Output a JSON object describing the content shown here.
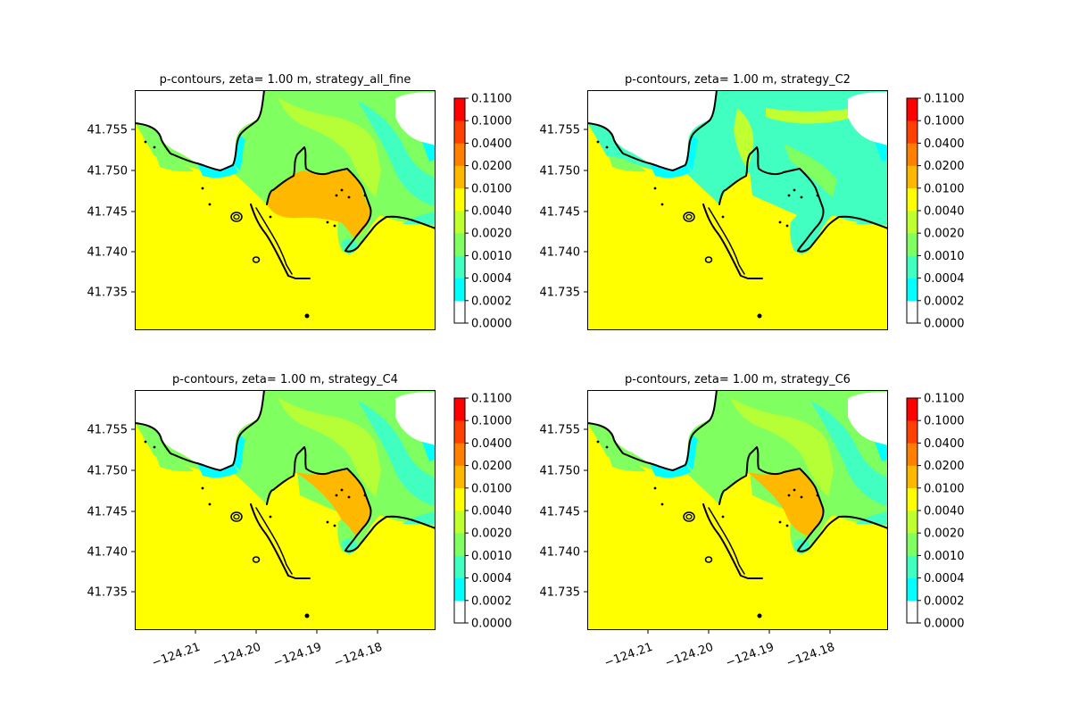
{
  "figure": {
    "background": "#ffffff"
  },
  "colorbar": {
    "levels": [
      "0.0000",
      "0.0002",
      "0.0004",
      "0.0010",
      "0.0020",
      "0.0040",
      "0.0100",
      "0.0200",
      "0.0400",
      "0.1000",
      "0.1100"
    ],
    "colors": [
      "#ffffff",
      "#00ffff",
      "#40ffc0",
      "#80ff60",
      "#c0ff30",
      "#ffff00",
      "#ffb800",
      "#ff8000",
      "#ff4000",
      "#ff0000"
    ]
  },
  "chart_data": [
    {
      "type": "heatmap",
      "title": "p-contours, zeta= 1.00 m, strategy_all_fine",
      "ytick_labels": [
        "41.755",
        "41.750",
        "41.745",
        "41.740",
        "41.735"
      ],
      "xtick_labels": [],
      "colorbar_ticks": [
        "0.1100",
        "0.1000",
        "0.0400",
        "0.0200",
        "0.0100",
        "0.0040",
        "0.0020",
        "0.0010",
        "0.0004",
        "0.0002",
        "0.0000"
      ],
      "variant": "all_fine"
    },
    {
      "type": "heatmap",
      "title": "p-contours, zeta= 1.00 m, strategy_C2",
      "ytick_labels": [
        "41.755",
        "41.750",
        "41.745",
        "41.740",
        "41.735"
      ],
      "xtick_labels": [],
      "colorbar_ticks": [
        "0.1100",
        "0.1000",
        "0.0400",
        "0.0200",
        "0.0100",
        "0.0040",
        "0.0020",
        "0.0010",
        "0.0004",
        "0.0002",
        "0.0000"
      ],
      "variant": "C2"
    },
    {
      "type": "heatmap",
      "title": "p-contours, zeta= 1.00 m, strategy_C4",
      "ytick_labels": [
        "41.755",
        "41.750",
        "41.745",
        "41.740",
        "41.735"
      ],
      "xtick_labels": [
        "−124.21",
        "−124.20",
        "−124.19",
        "−124.18"
      ],
      "colorbar_ticks": [
        "0.1100",
        "0.1000",
        "0.0400",
        "0.0200",
        "0.0100",
        "0.0040",
        "0.0020",
        "0.0010",
        "0.0004",
        "0.0002",
        "0.0000"
      ],
      "variant": "C4"
    },
    {
      "type": "heatmap",
      "title": "p-contours, zeta= 1.00 m, strategy_C6",
      "ytick_labels": [
        "41.755",
        "41.750",
        "41.745",
        "41.740",
        "41.735"
      ],
      "xtick_labels": [
        "−124.21",
        "−124.20",
        "−124.19",
        "−124.18"
      ],
      "colorbar_ticks": [
        "0.1100",
        "0.1000",
        "0.0400",
        "0.0200",
        "0.0100",
        "0.0040",
        "0.0020",
        "0.0010",
        "0.0004",
        "0.0002",
        "0.0000"
      ],
      "variant": "C6"
    }
  ]
}
